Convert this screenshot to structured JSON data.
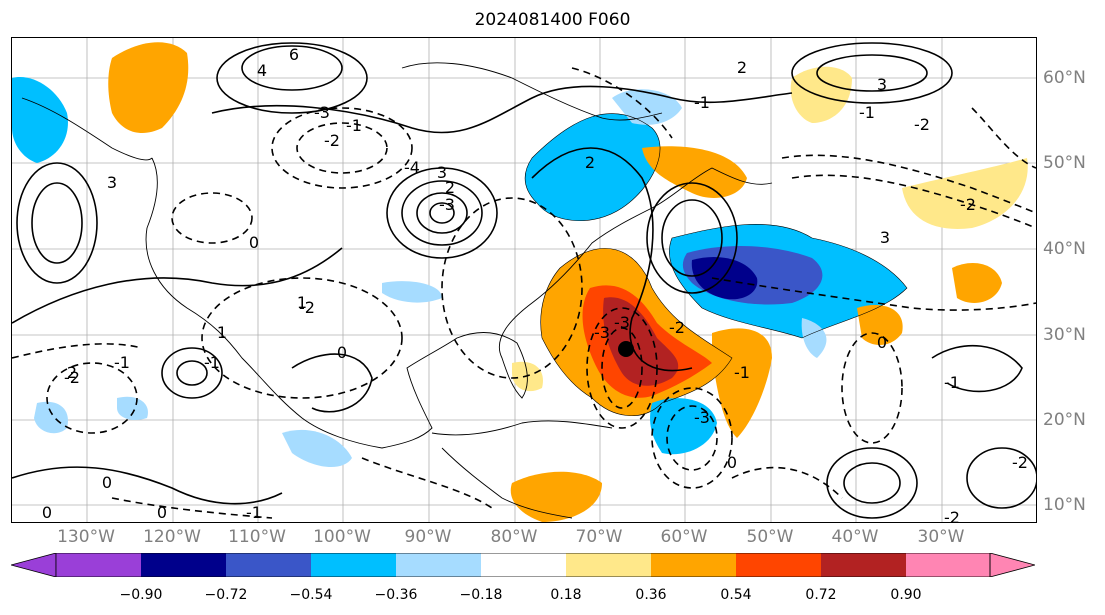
{
  "title": "2024081400 F060",
  "lon_labels": [
    "130°W",
    "120°W",
    "110°W",
    "100°W",
    "90°W",
    "80°W",
    "70°W",
    "60°W",
    "50°W",
    "40°W",
    "30°W"
  ],
  "lat_labels": [
    "60°N",
    "50°N",
    "40°N",
    "30°N",
    "20°N",
    "10°N"
  ],
  "colorbar": {
    "ticks": [
      "−0.90",
      "−0.72",
      "−0.54",
      "−0.36",
      "−0.18",
      "0.18",
      "0.36",
      "0.54",
      "0.72",
      "0.90"
    ],
    "colors": {
      "under": "#9a3fd8",
      "c1": "#00008b",
      "c2": "#3a56c8",
      "c3": "#00bfff",
      "c4": "#a6dcff",
      "c5": "#ffffff",
      "c6": "#ffe88a",
      "c7": "#ffa500",
      "c8": "#ff4500",
      "c9": "#b22222",
      "over": "#ff85b3"
    }
  },
  "contour_labels": [
    "6",
    "4",
    "3",
    "2",
    "-2",
    "-3",
    "-4",
    "-1",
    "0",
    "1",
    "-1",
    "-2",
    "3",
    "-3",
    "2",
    "0",
    "-2",
    "1",
    "-1",
    "0",
    "-1",
    "-1",
    "-2",
    "3",
    "-3",
    "-2",
    "0",
    "-2",
    "2",
    "3",
    "-3",
    "-1",
    "0",
    "-2",
    "-3",
    "-1",
    "0",
    "-2",
    "2",
    "-1",
    "0"
  ],
  "marker": "storm-center"
}
